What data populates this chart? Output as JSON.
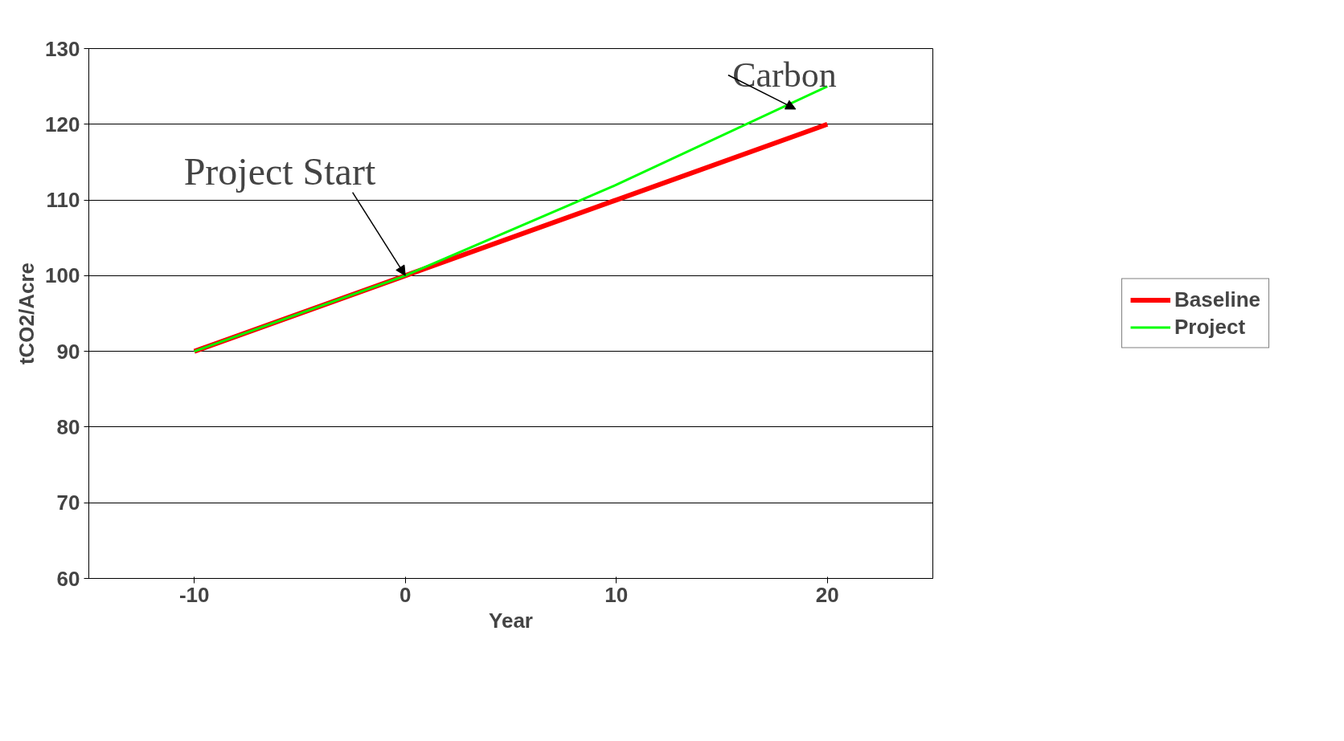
{
  "chart_data": {
    "type": "line",
    "xlabel": "Year",
    "ylabel": "tCO2/Acre",
    "categories": [
      "-10",
      "0",
      "10",
      "20"
    ],
    "series": [
      {
        "name": "Baseline",
        "color": "#ff0000",
        "values": [
          90,
          100,
          110,
          120
        ]
      },
      {
        "name": "Project",
        "color": "#00ff00",
        "values": [
          90,
          100,
          112,
          125
        ]
      }
    ],
    "ylim": [
      60,
      130
    ],
    "yticks": [
      60,
      70,
      80,
      90,
      100,
      110,
      120,
      130
    ],
    "grid": "y",
    "legend": "right",
    "marker": "none",
    "line_style": "solid",
    "annotations": [
      {
        "text": "Project Start",
        "x": "0",
        "y": 100
      },
      "Carbon"
    ]
  }
}
